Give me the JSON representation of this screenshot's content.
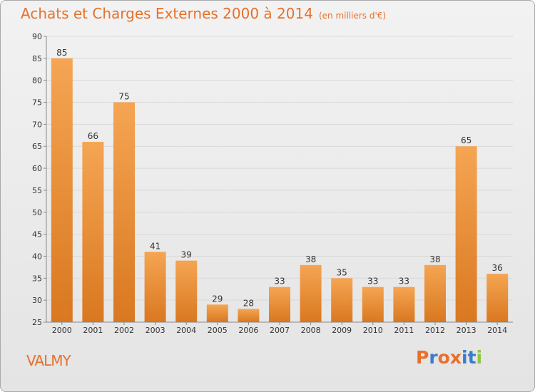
{
  "chart_data": {
    "type": "bar",
    "title": "Achats et Charges Externes 2000 à 2014",
    "subtitle": "(en milliers d'€)",
    "categories": [
      "2000",
      "2001",
      "2002",
      "2003",
      "2004",
      "2005",
      "2006",
      "2007",
      "2008",
      "2009",
      "2010",
      "2011",
      "2012",
      "2013",
      "2014"
    ],
    "values": [
      85,
      66,
      75,
      41,
      39,
      29,
      28,
      33,
      38,
      35,
      33,
      33,
      38,
      65,
      36
    ],
    "ylim": [
      25,
      90
    ],
    "yticks": [
      25,
      30,
      35,
      40,
      45,
      50,
      55,
      60,
      65,
      70,
      75,
      80,
      85,
      90
    ],
    "grid": true,
    "xlabel": "",
    "ylabel": ""
  },
  "place_name": "VALMY",
  "logo": {
    "text": "Proxiti",
    "letter_colors": [
      "#e8702a",
      "#3a7cc8",
      "#e8702a",
      "#e8702a",
      "#3a7cc8",
      "#3a7cc8",
      "#8cc63f"
    ]
  },
  "colors": {
    "bar_top": "#f5a553",
    "bar_bottom": "#d97820",
    "accent": "#e8702a",
    "grid": "#d8d8d8"
  }
}
